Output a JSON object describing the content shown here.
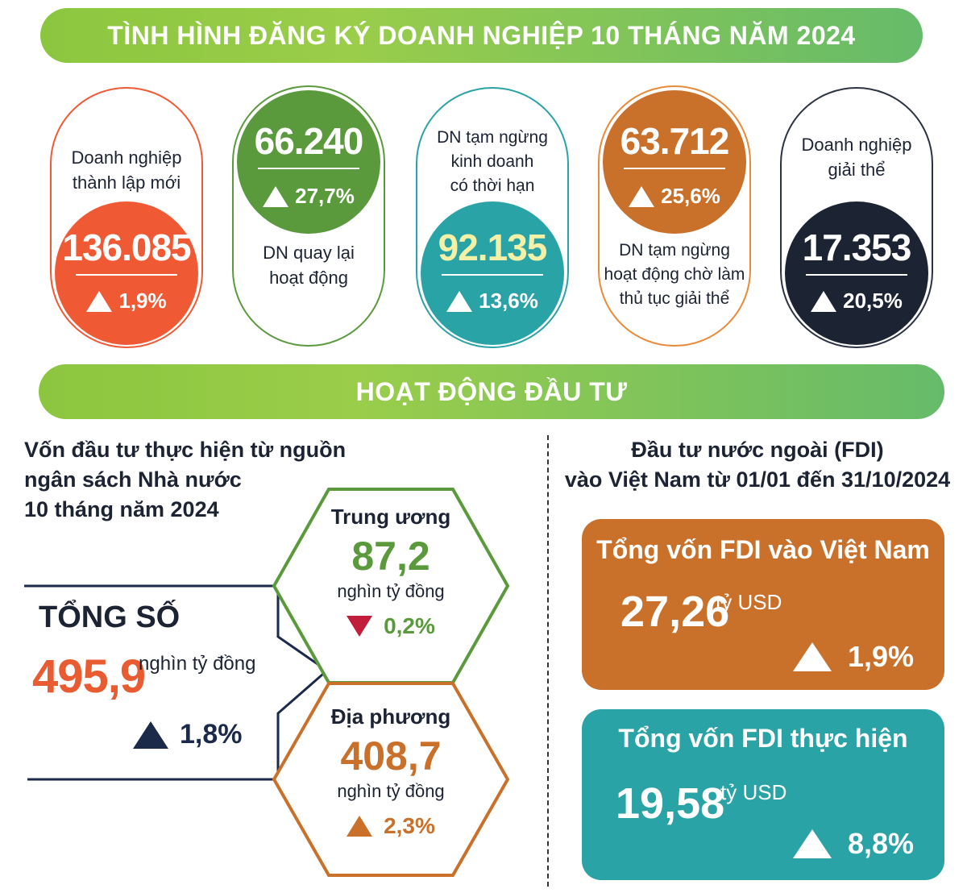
{
  "banner_top": "TÌNH HÌNH ĐĂNG KÝ DOANH NGHIỆP 10 THÁNG NĂM 2024",
  "banner_invest": "HOẠT ĐỘNG ĐẦU TƯ",
  "colors": {
    "red": "#ef5a35",
    "green": "#5a9a3c",
    "teal": "#2aa3a6",
    "orange": "#c9702a",
    "navy": "#1c2333"
  },
  "registration": [
    {
      "label_lines": [
        "Doanh nghiệp",
        "thành lập mới"
      ],
      "value": "136.085",
      "change": "1,9%"
    },
    {
      "label_lines": [
        "DN quay lại",
        "hoạt động"
      ],
      "value": "66.240",
      "change": "27,7%"
    },
    {
      "label_lines": [
        "DN tạm ngừng",
        "kinh doanh",
        "có thời hạn"
      ],
      "value": "92.135",
      "change": "13,6%"
    },
    {
      "label_lines": [
        "DN tạm ngừng",
        "hoạt động chờ làm",
        "thủ tục giải thể"
      ],
      "value": "63.712",
      "change": "25,6%"
    },
    {
      "label_lines": [
        "Doanh nghiệp",
        "giải thể"
      ],
      "value": "17.353",
      "change": "20,5%"
    }
  ],
  "state_budget": {
    "title_lines": [
      "Vốn đầu tư thực hiện từ nguồn",
      "ngân sách Nhà nước",
      "10 tháng năm 2024"
    ],
    "total_label": "TỔNG SỐ",
    "total_value": "495,9",
    "total_unit": "nghìn tỷ đồng",
    "total_change": "1,8%",
    "central": {
      "title": "Trung ương",
      "value": "87,2",
      "unit": "nghìn tỷ đồng",
      "change": "0,2%",
      "direction": "down"
    },
    "local": {
      "title": "Địa phương",
      "value": "408,7",
      "unit": "nghìn tỷ đồng",
      "change": "2,3%",
      "direction": "up"
    }
  },
  "fdi": {
    "title_lines": [
      "Đầu tư nước ngoài (FDI)",
      "vào Việt Nam từ 01/01 đến 31/10/2024"
    ],
    "registered": {
      "title": "Tổng vốn FDI vào Việt Nam",
      "value": "27,26",
      "unit": "tỷ USD",
      "change": "1,9%"
    },
    "disbursed": {
      "title": "Tổng vốn FDI thực hiện",
      "value": "19,58",
      "unit": "tỷ USD",
      "change": "8,8%"
    }
  }
}
